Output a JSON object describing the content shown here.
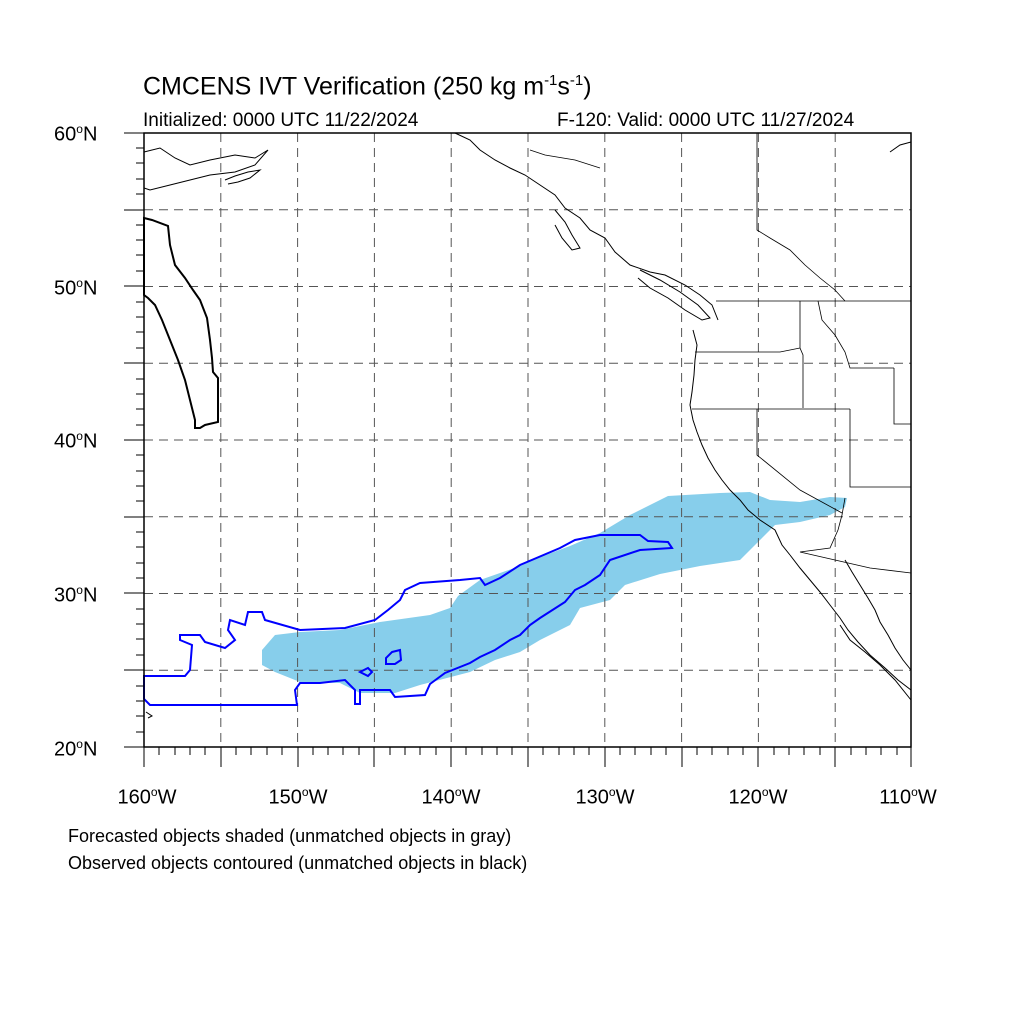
{
  "title": {
    "main": "CMCENS IVT Verification (250 kg m",
    "sup1": "-1",
    "mid": "s",
    "sup2": "-1",
    "end": ")"
  },
  "subtitle": {
    "initialized": "Initialized: 0000 UTC 11/22/2024",
    "valid": "F-120: Valid: 0000 UTC 11/27/2024"
  },
  "axes": {
    "lat_labels": [
      {
        "num": "60",
        "hemi": "N"
      },
      {
        "num": "50",
        "hemi": "N"
      },
      {
        "num": "40",
        "hemi": "N"
      },
      {
        "num": "30",
        "hemi": "N"
      },
      {
        "num": "20",
        "hemi": "N"
      }
    ],
    "lon_labels": [
      {
        "num": "160",
        "hemi": "W"
      },
      {
        "num": "150",
        "hemi": "W"
      },
      {
        "num": "140",
        "hemi": "W"
      },
      {
        "num": "130",
        "hemi": "W"
      },
      {
        "num": "120",
        "hemi": "W"
      },
      {
        "num": "110",
        "hemi": "W"
      }
    ],
    "lon_range": [
      -160,
      -110
    ],
    "lat_range": [
      20,
      60
    ],
    "grid_interval_deg": 5
  },
  "legend": {
    "line1": "Forecasted objects shaded (unmatched objects in gray)",
    "line2": "Observed objects contoured (unmatched objects in black)"
  },
  "colors": {
    "forecast_matched_fill": "#87ceeb",
    "observed_matched_contour": "#0000ff",
    "observed_unmatched_contour": "#000000",
    "coastline": "#000000",
    "grid": "#555555"
  }
}
